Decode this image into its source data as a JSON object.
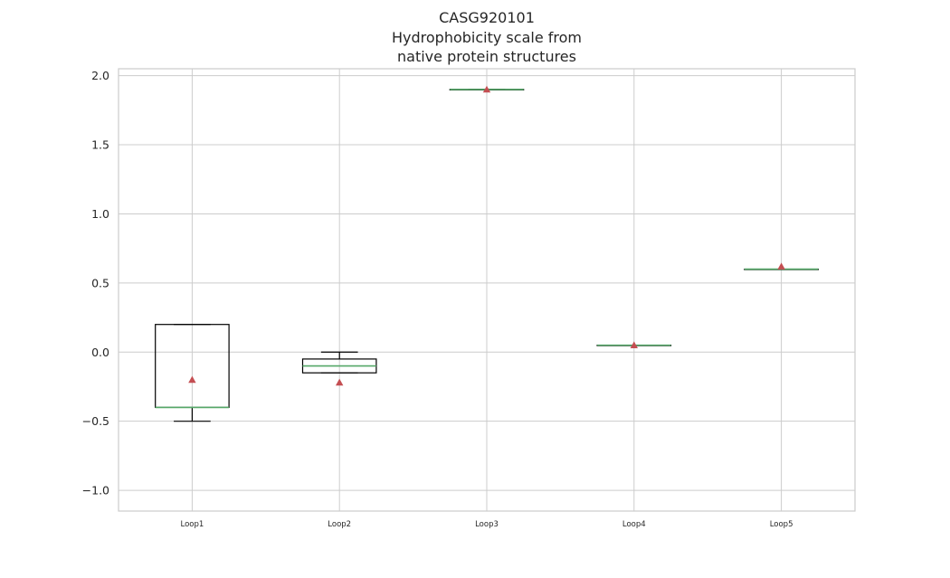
{
  "chart_data": {
    "type": "box",
    "title_lines": [
      "CASG920101",
      "Hydrophobicity scale from",
      "native protein structures"
    ],
    "xlabel": "",
    "ylabel": "",
    "categories": [
      "Loop1",
      "Loop2",
      "Loop3",
      "Loop4",
      "Loop5"
    ],
    "yticks": [
      "2.0",
      "1.5",
      "1.0",
      "0.5",
      "0.0",
      "−0.5",
      "−1.0"
    ],
    "ytick_values": [
      2.0,
      1.5,
      1.0,
      0.5,
      0.0,
      -0.5,
      -1.0
    ],
    "ylim": [
      -1.15,
      2.05
    ],
    "grid": true,
    "boxes": [
      {
        "name": "Loop1",
        "whisker_low": -0.5,
        "q1": -0.4,
        "median": -0.4,
        "q3": 0.2,
        "whisker_high": 0.2,
        "mean": -0.2
      },
      {
        "name": "Loop2",
        "whisker_low": -0.15,
        "q1": -0.15,
        "median": -0.1,
        "q3": -0.05,
        "whisker_high": 0.0,
        "mean": -0.22
      },
      {
        "name": "Loop3",
        "whisker_low": 1.9,
        "q1": 1.9,
        "median": 1.9,
        "q3": 1.9,
        "whisker_high": 1.9,
        "mean": 1.9
      },
      {
        "name": "Loop4",
        "whisker_low": 0.05,
        "q1": 0.05,
        "median": 0.05,
        "q3": 0.05,
        "whisker_high": 0.05,
        "mean": 0.05
      },
      {
        "name": "Loop5",
        "whisker_low": 0.6,
        "q1": 0.6,
        "median": 0.6,
        "q3": 0.6,
        "whisker_high": 0.6,
        "mean": 0.62
      }
    ],
    "colors": {
      "box": "#000000",
      "median": "#55a868",
      "mean_marker": "#c44e52",
      "grid": "#cccccc",
      "frame": "#cccccc"
    }
  }
}
